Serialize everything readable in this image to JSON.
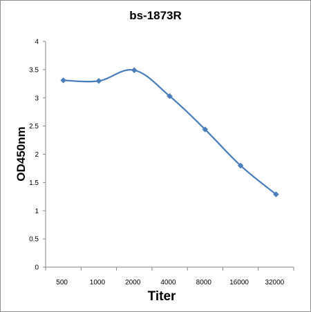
{
  "chart_data": {
    "type": "line",
    "title": "bs-1873R",
    "xlabel": "Titer",
    "ylabel": "OD450nm",
    "categories": [
      "500",
      "1000",
      "2000",
      "4000",
      "8000",
      "16000",
      "32000"
    ],
    "series": [
      {
        "values": [
          3.31,
          3.3,
          3.49,
          3.03,
          2.44,
          1.8,
          1.29
        ],
        "color": "#4a7ebb",
        "marker": "diamond"
      }
    ],
    "ylim": [
      0,
      4
    ],
    "yticks": [
      "0",
      "0.5",
      "1",
      "1.5",
      "2",
      "2.5",
      "3",
      "3.5",
      "4"
    ],
    "grid": false,
    "legend": "none"
  }
}
